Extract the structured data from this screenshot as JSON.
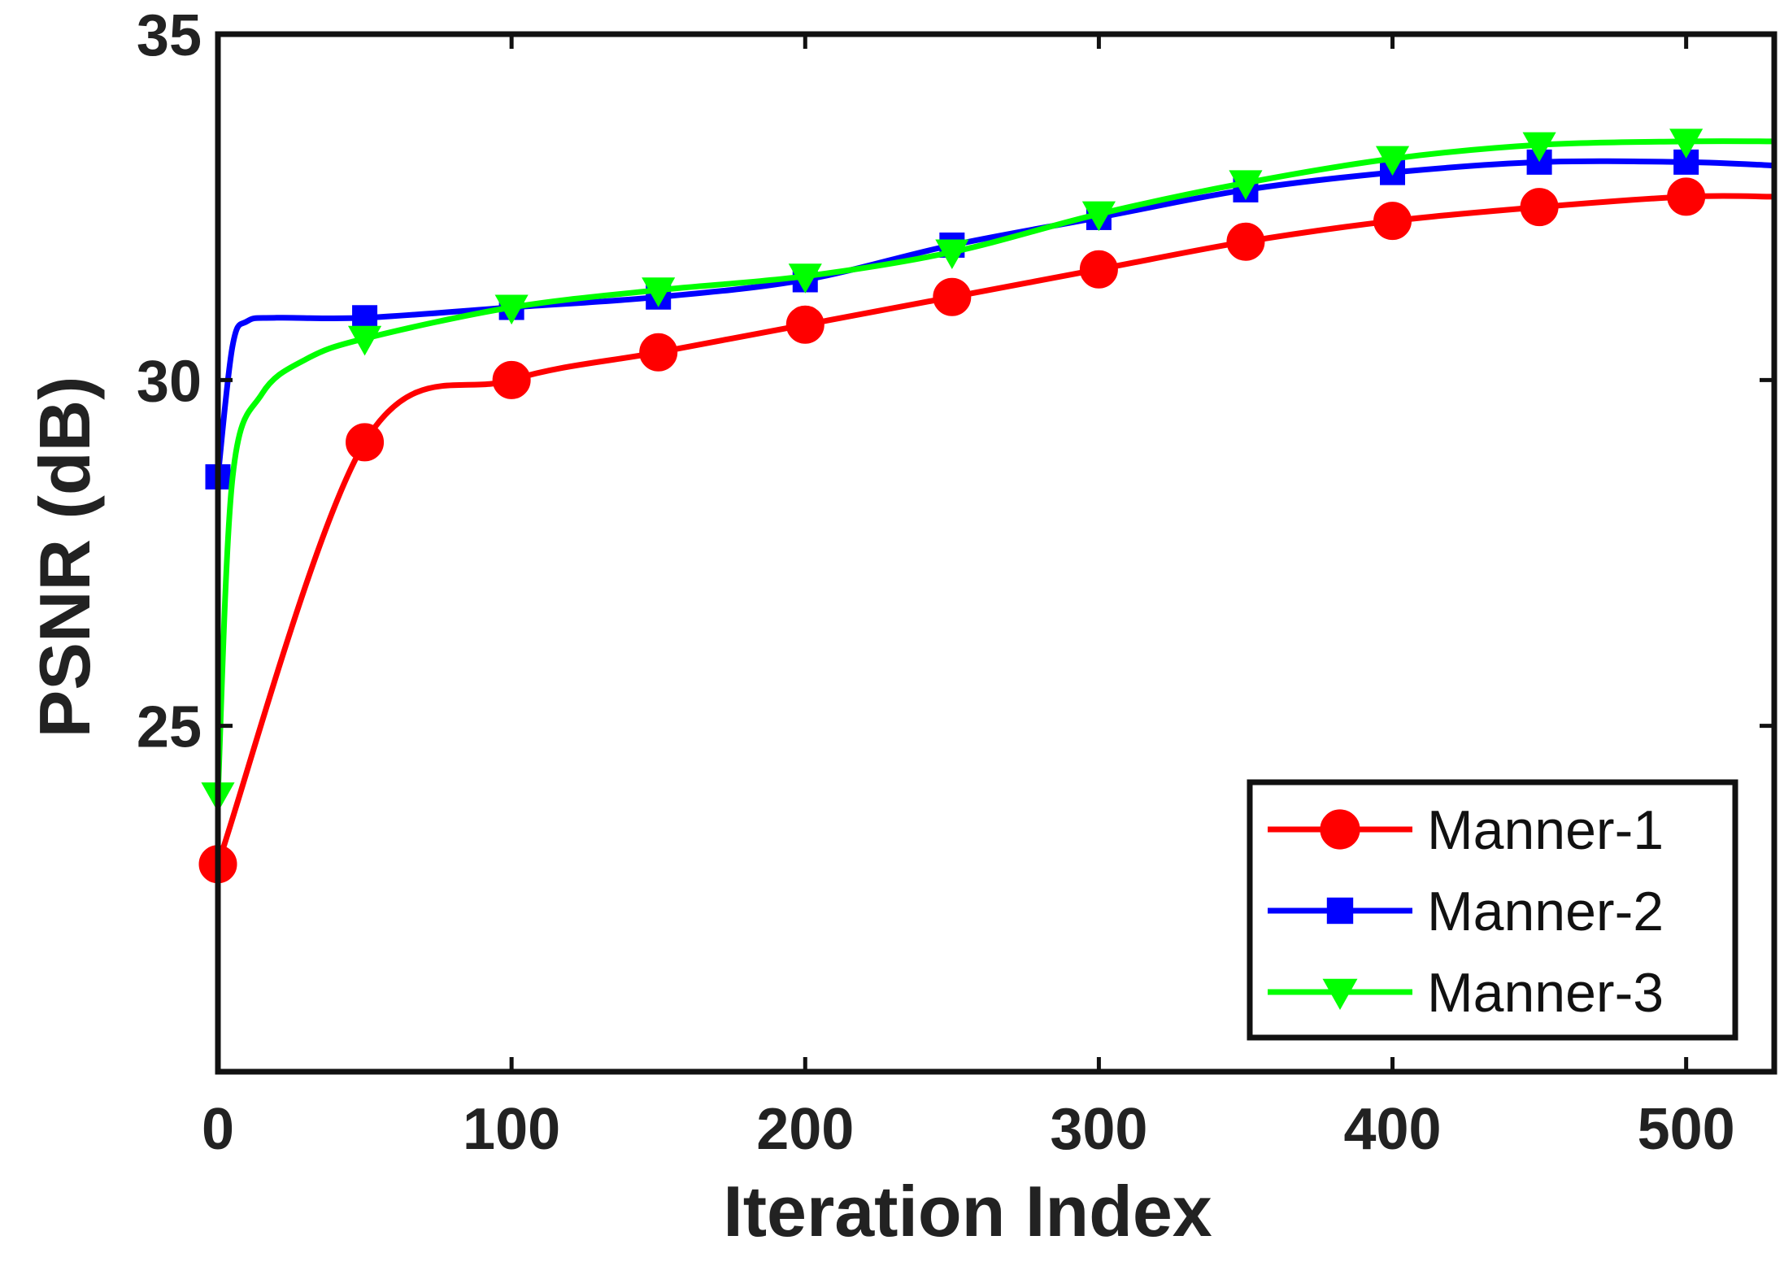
{
  "chart_data": {
    "type": "line",
    "title": "",
    "xlabel": "Iteration Index",
    "ylabel": "PSNR (dB)",
    "xlim": [
      0,
      530
    ],
    "ylim": [
      20,
      35
    ],
    "xticks": [
      0,
      100,
      200,
      300,
      400,
      500
    ],
    "xtick_labels": [
      "0",
      "100",
      "200",
      "300",
      "400",
      "500"
    ],
    "yticks": [
      25,
      30,
      35
    ],
    "ytick_labels": [
      "25",
      "30",
      "35"
    ],
    "grid": false,
    "legend_position": "bottom-right",
    "series": [
      {
        "name": "Manner-1",
        "color": "#ff0000",
        "marker": "circle",
        "x": [
          0,
          50,
          100,
          150,
          200,
          250,
          300,
          350,
          400,
          450,
          500,
          530
        ],
        "y": [
          23.0,
          29.1,
          30.0,
          30.4,
          30.8,
          31.2,
          31.6,
          32.0,
          32.3,
          32.5,
          32.65,
          32.65
        ],
        "markers_at": [
          0,
          50,
          100,
          150,
          200,
          250,
          300,
          350,
          400,
          450,
          500
        ]
      },
      {
        "name": "Manner-2",
        "color": "#0000ff",
        "marker": "square",
        "x": [
          0,
          5,
          10,
          20,
          50,
          100,
          150,
          200,
          250,
          300,
          350,
          400,
          450,
          500,
          530
        ],
        "y": [
          28.6,
          30.5,
          30.85,
          30.9,
          30.9,
          31.05,
          31.2,
          31.45,
          31.95,
          32.35,
          32.75,
          33.0,
          33.15,
          33.15,
          33.1
        ],
        "markers_at": [
          0,
          50,
          100,
          150,
          200,
          250,
          300,
          350,
          400,
          450,
          500
        ]
      },
      {
        "name": "Manner-3",
        "color": "#00ff00",
        "marker": "triangle-down",
        "x": [
          0,
          5,
          15,
          30,
          50,
          100,
          150,
          200,
          250,
          300,
          350,
          400,
          450,
          500,
          530
        ],
        "y": [
          24.0,
          28.6,
          29.8,
          30.3,
          30.6,
          31.05,
          31.3,
          31.5,
          31.85,
          32.4,
          32.85,
          33.2,
          33.4,
          33.45,
          33.45
        ],
        "markers_at": [
          0,
          50,
          100,
          150,
          200,
          250,
          300,
          350,
          400,
          450,
          500
        ]
      }
    ]
  }
}
